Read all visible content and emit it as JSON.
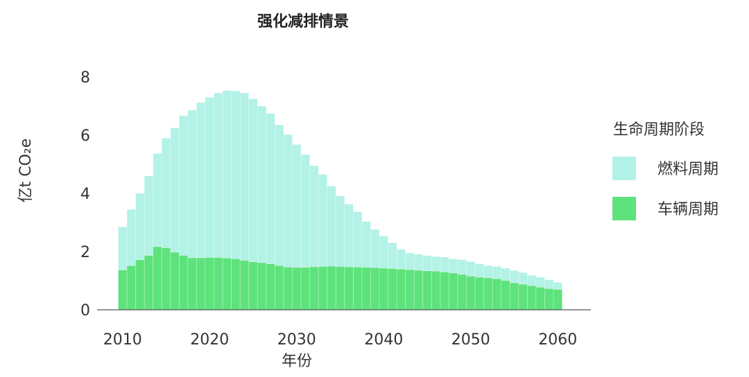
{
  "chart_data": {
    "type": "bar",
    "stacked": true,
    "title": "强化减排情景",
    "xlabel": "年份",
    "ylabel": "亿t CO₂e",
    "ylim": [
      0,
      8
    ],
    "yticks": [
      0,
      2,
      4,
      6,
      8
    ],
    "xticks": [
      2010,
      2020,
      2030,
      2040,
      2050,
      2060
    ],
    "x": [
      2010,
      2011,
      2012,
      2013,
      2014,
      2015,
      2016,
      2017,
      2018,
      2019,
      2020,
      2021,
      2022,
      2023,
      2024,
      2025,
      2026,
      2027,
      2028,
      2029,
      2030,
      2031,
      2032,
      2033,
      2034,
      2035,
      2036,
      2037,
      2038,
      2039,
      2040,
      2041,
      2042,
      2043,
      2044,
      2045,
      2046,
      2047,
      2048,
      2049,
      2050,
      2051,
      2052,
      2053,
      2054,
      2055,
      2056,
      2057,
      2058,
      2059,
      2060
    ],
    "legend_title": "生命周期阶段",
    "legend_position": "right",
    "series": [
      {
        "name": "车辆周期",
        "color": "#5ee27c",
        "values": [
          1.37,
          1.52,
          1.72,
          1.87,
          2.17,
          2.13,
          1.98,
          1.87,
          1.79,
          1.79,
          1.8,
          1.8,
          1.78,
          1.75,
          1.7,
          1.65,
          1.62,
          1.58,
          1.52,
          1.47,
          1.46,
          1.46,
          1.48,
          1.49,
          1.5,
          1.49,
          1.48,
          1.47,
          1.46,
          1.45,
          1.43,
          1.42,
          1.4,
          1.38,
          1.36,
          1.34,
          1.33,
          1.3,
          1.27,
          1.22,
          1.16,
          1.12,
          1.1,
          1.07,
          1.01,
          0.93,
          0.88,
          0.83,
          0.78,
          0.73,
          0.7
        ]
      },
      {
        "name": "燃料周期",
        "color": "#b3f2e6",
        "values": [
          1.48,
          1.93,
          2.28,
          2.73,
          3.2,
          3.77,
          4.27,
          4.8,
          5.07,
          5.33,
          5.5,
          5.65,
          5.75,
          5.77,
          5.75,
          5.6,
          5.38,
          5.17,
          4.83,
          4.55,
          4.22,
          3.87,
          3.47,
          3.16,
          2.75,
          2.42,
          2.15,
          1.9,
          1.57,
          1.31,
          1.1,
          0.88,
          0.68,
          0.57,
          0.55,
          0.52,
          0.5,
          0.51,
          0.48,
          0.5,
          0.5,
          0.46,
          0.42,
          0.42,
          0.42,
          0.42,
          0.4,
          0.35,
          0.34,
          0.3,
          0.24
        ]
      }
    ]
  }
}
